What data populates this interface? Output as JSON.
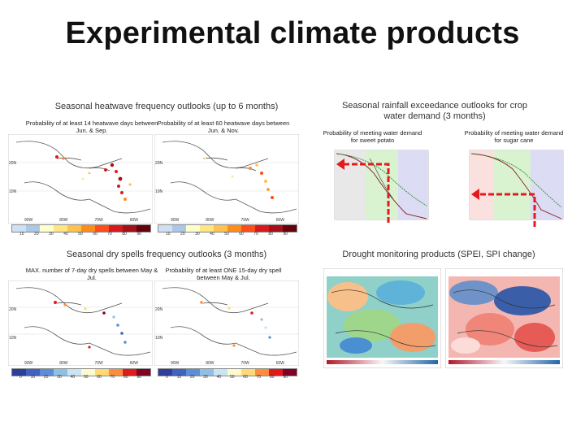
{
  "page": {
    "title": "Experimental climate products"
  },
  "sections": {
    "heatwave": "Seasonal heatwave frequency outlooks (up to 6 months)",
    "rainfall": "Seasonal rainfall exceedance outlooks for crop water demand (3 months)",
    "dryspells": "Seasonal dry spells frequency outlooks (3 months)",
    "drought": "Drought monitoring products (SPEI, SPI change)"
  },
  "captions": {
    "heat1": "Probability of at least 14 heatwave days between Jun. & Sep.",
    "heat2": "Probability of at least 60 heatwave days between Jun. & Nov.",
    "rain1": "Probability of meeting water demand for sweet potato",
    "rain2": "Probability of meeting water demand for sugar cane",
    "dry1": "MAX. number of 7-day dry spells between May & Jul.",
    "dry2": "Probability of at least ONE 15-day dry spell between May & Jul."
  },
  "map_labels": {
    "lon_a": [
      "90W",
      "80W",
      "70W",
      "60W"
    ],
    "lon_b": [
      "90W",
      "80W",
      "70W",
      "60W"
    ],
    "lat_a": [
      "20N",
      "10N"
    ],
    "lat_b": [
      "20N",
      "10N"
    ],
    "legend_heat": [
      "10",
      "20",
      "30",
      "40",
      "50",
      "60",
      "70",
      "80",
      "90"
    ],
    "legend_dry": [
      "0",
      "10",
      "20",
      "30",
      "40",
      "50",
      "60",
      "70",
      "80",
      "90"
    ]
  },
  "colors": {
    "heat_scale": [
      "#cfe0f5",
      "#a9c8ea",
      "#ffffcc",
      "#ffe680",
      "#ffc24d",
      "#ff8c1a",
      "#ff4d1a",
      "#d7191c",
      "#a50f15",
      "#67000d"
    ],
    "dry_scale": [
      "#2c3f99",
      "#3f63c1",
      "#5a8fd6",
      "#8ec0e6",
      "#c9e4f2",
      "#fffacc",
      "#fed976",
      "#fd8d3c",
      "#e31a1c",
      "#800026"
    ],
    "arrow": "#e31a1c"
  }
}
